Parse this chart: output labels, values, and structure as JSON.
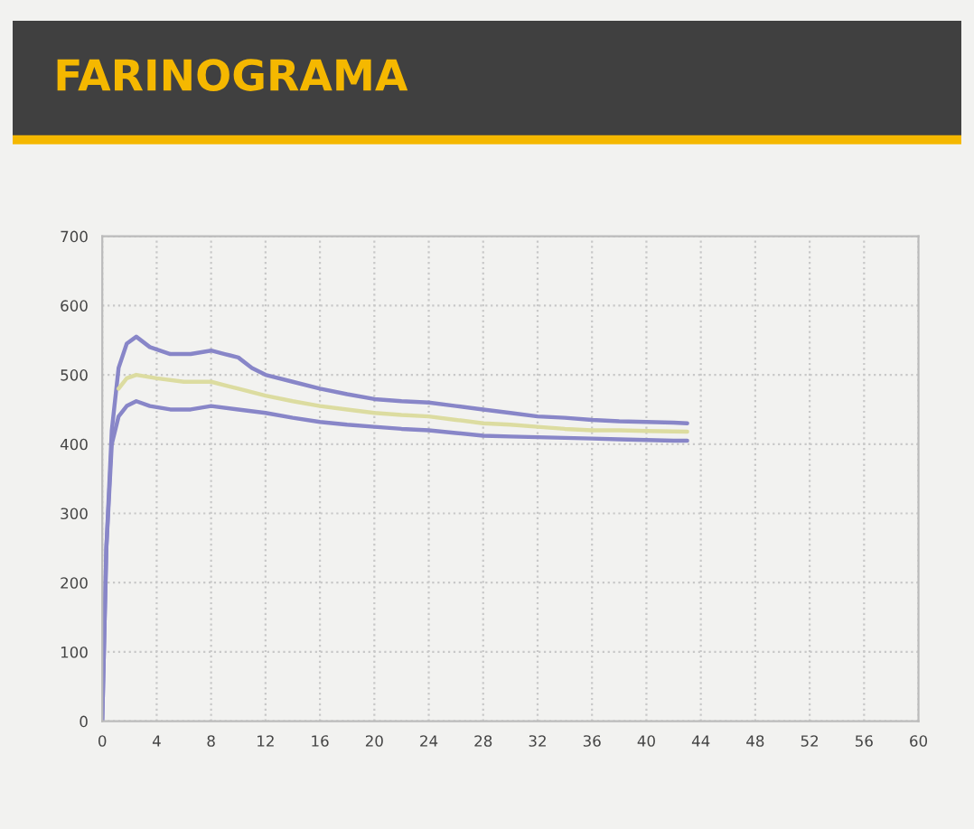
{
  "chart_data": {
    "type": "line",
    "title": "FARINOGRAMA",
    "series": [
      {
        "color": "#8886c8",
        "x": [
          0,
          0.3,
          0.7,
          1.2,
          1.8,
          2.5,
          3.5,
          5,
          6.5,
          8,
          9,
          10,
          11,
          12,
          14,
          16,
          18,
          20,
          22,
          24,
          26,
          28,
          30,
          32,
          34,
          36,
          38,
          40,
          42,
          43
        ],
        "values": [
          0,
          250,
          420,
          510,
          545,
          555,
          540,
          530,
          530,
          535,
          530,
          525,
          510,
          500,
          490,
          480,
          472,
          465,
          462,
          460,
          455,
          450,
          445,
          440,
          438,
          435,
          433,
          432,
          431,
          430
        ]
      },
      {
        "color": "#dcdca0",
        "x": [
          1.2,
          1.8,
          2.5,
          4,
          6,
          8,
          10,
          12,
          14,
          16,
          18,
          20,
          22,
          24,
          26,
          28,
          30,
          32,
          34,
          36,
          38,
          40,
          43
        ],
        "values": [
          480,
          495,
          500,
          495,
          490,
          490,
          480,
          470,
          462,
          455,
          450,
          445,
          442,
          440,
          435,
          430,
          428,
          425,
          422,
          420,
          420,
          419,
          418
        ]
      },
      {
        "color": "#8886c8",
        "x": [
          0,
          0.3,
          0.7,
          1.2,
          1.8,
          2.5,
          3.5,
          5,
          6.5,
          8,
          10,
          12,
          14,
          16,
          18,
          20,
          22,
          24,
          26,
          28,
          30,
          32,
          34,
          36,
          38,
          40,
          42,
          43
        ],
        "values": [
          0,
          250,
          400,
          440,
          455,
          462,
          455,
          450,
          450,
          455,
          450,
          445,
          438,
          432,
          428,
          425,
          422,
          420,
          416,
          412,
          411,
          410,
          409,
          408,
          407,
          406,
          405,
          405
        ]
      }
    ],
    "xlim": [
      0,
      60
    ],
    "xticks": [
      0,
      4,
      8,
      12,
      16,
      20,
      24,
      28,
      32,
      36,
      40,
      44,
      48,
      52,
      56,
      60
    ],
    "ylim": [
      0,
      700
    ],
    "yticks": [
      0,
      100,
      200,
      300,
      400,
      500,
      600,
      700
    ],
    "grid": true,
    "line_style": "solid",
    "marker": "none"
  }
}
